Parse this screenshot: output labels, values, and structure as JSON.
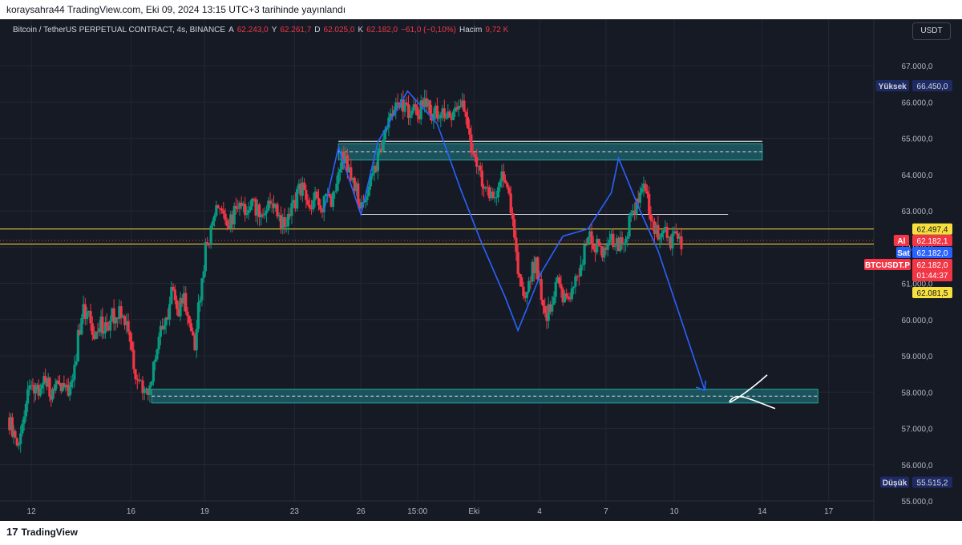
{
  "publish_line": "koraysahra44 TradingView.com, Eki 09, 2024 13:15 UTC+3 tarihinde yayınlandı",
  "legend": {
    "symbol": "Bitcoin / TetherUS PERPETUAL CONTRACT, 4s, BINANCE",
    "open_label": "A",
    "open": "62.243,0",
    "high_label": "Y",
    "high": "62.261,7",
    "low_label": "D",
    "low": "62.025,0",
    "close_label": "K",
    "close": "62.182,0",
    "change": "−61,0 (−0,10%)",
    "volume_label": "Hacim",
    "volume": "9,72 K"
  },
  "currency": "USDT",
  "footer_logo": "TradingView",
  "footer_mark": "17",
  "colors": {
    "background": "#161a25",
    "grid": "#232734",
    "text": "#b2b5be",
    "up": "#089981",
    "down": "#f23645",
    "drawing": "#2962ff",
    "zone_fill": "#1c5d66",
    "zone_border": "#26a69a",
    "price_line": "#f7e03d",
    "white_line": "#d1d4dc"
  },
  "chart_data": {
    "type": "candlestick",
    "interval": "4s",
    "y_range": [
      54700,
      67400
    ],
    "y_ticks": [
      55000,
      56000,
      57000,
      58000,
      59000,
      60000,
      61000,
      62000,
      63000,
      64000,
      65000,
      66000,
      67000
    ],
    "y_tick_labels": [
      "55.000,0",
      "56.000,0",
      "57.000,0",
      "58.000,0",
      "59.000,0",
      "60.000,0",
      "61.000,0",
      "62.000,0",
      "63.000,0",
      "64.000,0",
      "65.000,0",
      "66.000,0",
      "67.000,0"
    ],
    "x_range": [
      0,
      37.5
    ],
    "x_ticks": [
      {
        "t": 1.3,
        "label": "12"
      },
      {
        "t": 6.85,
        "label": "16"
      },
      {
        "t": 10.95,
        "label": "19"
      },
      {
        "t": 15.95,
        "label": "23"
      },
      {
        "t": 19.65,
        "label": "26"
      },
      {
        "t": 22.8,
        "label": "15:00"
      },
      {
        "t": 25.95,
        "label": "Eki"
      },
      {
        "t": 29.6,
        "label": "4"
      },
      {
        "t": 33.3,
        "label": "7"
      },
      {
        "t": 37.1,
        "label": "10"
      }
    ],
    "x_ticks_future": [
      {
        "t": 42.0,
        "label": "14"
      },
      {
        "t": 45.7,
        "label": "17"
      }
    ],
    "close_path": [
      [
        0.0,
        57.3
      ],
      [
        0.4,
        56.8
      ],
      [
        0.7,
        56.7
      ],
      [
        1.0,
        57.6
      ],
      [
        1.3,
        58.3
      ],
      [
        1.7,
        58.0
      ],
      [
        2.0,
        58.6
      ],
      [
        2.4,
        58.0
      ],
      [
        2.8,
        58.1
      ],
      [
        3.2,
        58.0
      ],
      [
        3.6,
        58.2
      ],
      [
        3.9,
        59.5
      ],
      [
        4.2,
        60.2
      ],
      [
        4.5,
        60.0
      ],
      [
        4.8,
        59.6
      ],
      [
        5.1,
        59.9
      ],
      [
        5.5,
        59.8
      ],
      [
        5.8,
        60.1
      ],
      [
        6.1,
        60.2
      ],
      [
        6.4,
        60.0
      ],
      [
        6.7,
        59.7
      ],
      [
        6.9,
        59.0
      ],
      [
        7.1,
        58.5
      ],
      [
        7.3,
        58.3
      ],
      [
        7.5,
        58.0
      ],
      [
        7.7,
        58.0
      ],
      [
        7.9,
        58.1
      ],
      [
        8.1,
        58.6
      ],
      [
        8.3,
        59.3
      ],
      [
        8.6,
        59.8
      ],
      [
        8.9,
        60.2
      ],
      [
        9.1,
        61.0
      ],
      [
        9.3,
        60.6
      ],
      [
        9.5,
        60.3
      ],
      [
        9.8,
        60.6
      ],
      [
        10.1,
        60.0
      ],
      [
        10.4,
        59.3
      ],
      [
        10.6,
        60.3
      ],
      [
        10.8,
        61.2
      ],
      [
        11.0,
        61.9
      ],
      [
        11.2,
        62.2
      ],
      [
        11.4,
        62.6
      ],
      [
        11.7,
        63.2
      ],
      [
        12.0,
        63.0
      ],
      [
        12.3,
        62.7
      ],
      [
        12.6,
        62.9
      ],
      [
        12.9,
        63.1
      ],
      [
        13.2,
        62.9
      ],
      [
        13.5,
        63.3
      ],
      [
        13.8,
        63.1
      ],
      [
        14.1,
        62.9
      ],
      [
        14.4,
        63.0
      ],
      [
        14.7,
        63.2
      ],
      [
        15.0,
        62.9
      ],
      [
        15.3,
        62.6
      ],
      [
        15.6,
        62.7
      ],
      [
        15.9,
        63.1
      ],
      [
        16.2,
        63.7
      ],
      [
        16.5,
        63.5
      ],
      [
        16.8,
        63.1
      ],
      [
        17.1,
        63.4
      ],
      [
        17.4,
        63.0
      ],
      [
        17.7,
        63.3
      ],
      [
        18.0,
        63.1
      ],
      [
        18.3,
        64.0
      ],
      [
        18.6,
        64.5
      ],
      [
        18.9,
        64.2
      ],
      [
        19.2,
        63.8
      ],
      [
        19.5,
        63.4
      ],
      [
        19.8,
        63.1
      ],
      [
        20.1,
        63.6
      ],
      [
        20.4,
        64.1
      ],
      [
        20.7,
        64.6
      ],
      [
        21.0,
        65.2
      ],
      [
        21.3,
        65.7
      ],
      [
        21.6,
        65.9
      ],
      [
        21.9,
        66.0
      ],
      [
        22.2,
        65.7
      ],
      [
        22.5,
        65.8
      ],
      [
        22.8,
        65.6
      ],
      [
        23.1,
        65.9
      ],
      [
        23.4,
        65.8
      ],
      [
        23.7,
        65.6
      ],
      [
        24.0,
        65.8
      ],
      [
        24.3,
        65.7
      ],
      [
        24.6,
        65.5
      ],
      [
        24.9,
        65.7
      ],
      [
        25.2,
        65.9
      ],
      [
        25.5,
        65.7
      ],
      [
        25.8,
        64.8
      ],
      [
        26.1,
        64.3
      ],
      [
        26.4,
        63.8
      ],
      [
        26.7,
        63.5
      ],
      [
        27.0,
        63.2
      ],
      [
        27.3,
        63.7
      ],
      [
        27.6,
        63.9
      ],
      [
        27.9,
        63.4
      ],
      [
        28.2,
        62.3
      ],
      [
        28.5,
        61.0
      ],
      [
        28.8,
        60.4
      ],
      [
        29.1,
        61.3
      ],
      [
        29.4,
        61.5
      ],
      [
        29.7,
        60.7
      ],
      [
        30.0,
        60.1
      ],
      [
        30.3,
        60.5
      ],
      [
        30.6,
        61.0
      ],
      [
        30.9,
        60.6
      ],
      [
        31.2,
        60.4
      ],
      [
        31.5,
        60.9
      ],
      [
        31.8,
        61.4
      ],
      [
        32.1,
        61.9
      ],
      [
        32.4,
        62.3
      ],
      [
        32.7,
        62.1
      ],
      [
        33.0,
        61.8
      ],
      [
        33.3,
        62.0
      ],
      [
        33.6,
        62.2
      ],
      [
        33.9,
        62.0
      ],
      [
        34.2,
        62.3
      ],
      [
        34.5,
        62.5
      ],
      [
        34.8,
        62.9
      ],
      [
        35.1,
        63.3
      ],
      [
        35.4,
        63.5
      ],
      [
        35.7,
        63.1
      ],
      [
        36.0,
        62.6
      ],
      [
        36.3,
        62.3
      ],
      [
        36.6,
        62.4
      ],
      [
        36.9,
        62.2
      ],
      [
        37.2,
        62.3
      ],
      [
        37.5,
        62.182
      ]
    ],
    "levels": {
      "high": {
        "label": "Yüksek",
        "value": 66450.0,
        "text": "66.450,0"
      },
      "low": {
        "label": "Düşük",
        "value": 55515.2,
        "text": "55.515,2"
      },
      "upper_yellow": {
        "value": 62497.4,
        "text": "62.497,4"
      },
      "lower_yellow": {
        "value": 62081.5,
        "text": "62.081,5"
      },
      "ask": {
        "label": "Al",
        "value": 62182.1,
        "text": "62.182,1"
      },
      "bid": {
        "label": "Sat",
        "value": 62182.0,
        "text": "62.182,0"
      },
      "last": {
        "label": "BTCUSDT.P",
        "value": 62182.0,
        "text": "62.182,0",
        "countdown": "01:44:37"
      }
    },
    "zones": [
      {
        "name": "resistance-zone",
        "t_start": 18.4,
        "t_end": 42.0,
        "y_low": 64400,
        "y_high": 64850,
        "line_top": 64850
      },
      {
        "name": "support-zone",
        "t_start": 8.0,
        "t_end": 45.1,
        "y_low": 57700,
        "y_high": 58080
      }
    ],
    "neckline": {
      "t_start": 19.65,
      "t_end": 40.1,
      "value": 62900
    },
    "pattern_path": [
      [
        17.6,
        63.0
      ],
      [
        18.4,
        64.75
      ],
      [
        19.65,
        62.9
      ],
      [
        20.6,
        64.9
      ],
      [
        22.25,
        66.3
      ],
      [
        23.9,
        65.4
      ],
      [
        25.2,
        63.6
      ],
      [
        26.3,
        62.2
      ],
      [
        27.7,
        60.6
      ],
      [
        28.4,
        59.7
      ],
      [
        29.7,
        61.3
      ],
      [
        30.9,
        62.3
      ],
      [
        32.3,
        62.5
      ],
      [
        33.6,
        63.5
      ],
      [
        34.0,
        64.45
      ],
      [
        35.2,
        63.0
      ],
      [
        36.2,
        61.9
      ],
      [
        38.8,
        58.05
      ]
    ],
    "projection_arrow": {
      "from": [
        36.2,
        61.9
      ],
      "to": [
        38.8,
        58.05
      ]
    }
  }
}
